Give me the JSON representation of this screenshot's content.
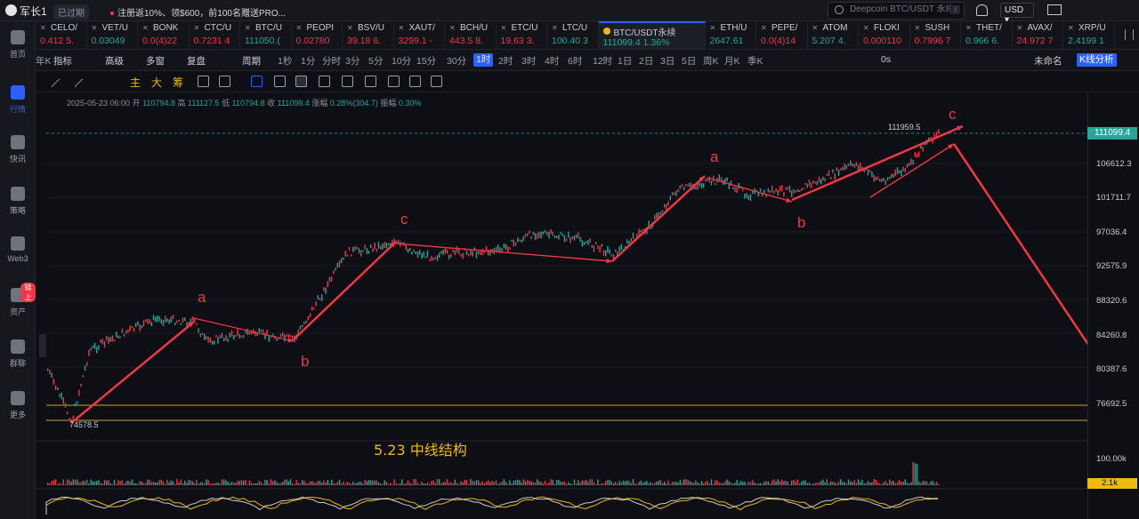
{
  "topbar": {
    "user": "军长1",
    "status": "已过期",
    "promo": "注册返10%、领$600，前100名赠送PRO...",
    "search_placeholder": "Deepcoin BTC/USDT 永续",
    "search_shortcut": "/",
    "currency": "USD ▾"
  },
  "sidebar": [
    {
      "label": "首页",
      "icon": "home-icon"
    },
    {
      "label": "行情",
      "icon": "chart-bars-icon",
      "active": true
    },
    {
      "label": "快讯",
      "icon": "news-icon"
    },
    {
      "label": "策略",
      "icon": "robot-icon"
    },
    {
      "label": "Web3",
      "icon": "web3-icon"
    },
    {
      "label": "资产",
      "icon": "wallet-icon",
      "badge": "链上"
    },
    {
      "label": "群聊",
      "icon": "chat-icon"
    },
    {
      "label": "更多",
      "icon": "grid-icon"
    }
  ],
  "tickers": [
    {
      "name": "CELO/",
      "price": "0.412 5.",
      "dir": "dn"
    },
    {
      "name": "VET/U",
      "price": "0.03049",
      "dir": "up"
    },
    {
      "name": "BONK",
      "price": "0.0(4)22",
      "dir": "dn"
    },
    {
      "name": "CTC/U",
      "price": "0.7231 4",
      "dir": "dn"
    },
    {
      "name": "BTC/U",
      "price": "111050.(",
      "dir": "up"
    },
    {
      "name": "PEOPI",
      "price": "0.02780",
      "dir": "dn"
    },
    {
      "name": "BSV/U",
      "price": "39.18 6.",
      "dir": "dn"
    },
    {
      "name": "XAUT/",
      "price": "3299.1 -",
      "dir": "dn"
    },
    {
      "name": "BCH/U",
      "price": "443.5 8.",
      "dir": "dn"
    },
    {
      "name": "ETC/U",
      "price": "19.63 3.",
      "dir": "dn"
    },
    {
      "name": "LTC/U",
      "price": "100.40 3",
      "dir": "up"
    },
    {
      "name": "BTC/USDT永续",
      "price": "111099.4  1.36%",
      "dir": "up",
      "active": true
    },
    {
      "name": "ETH/U",
      "price": "2647.61",
      "dir": "up"
    },
    {
      "name": "PEPE/",
      "price": "0.0(4)14",
      "dir": "dn"
    },
    {
      "name": "ATOM",
      "price": "5.207 4.",
      "dir": "up"
    },
    {
      "name": "FLOKI",
      "price": "0.000110",
      "dir": "dn"
    },
    {
      "name": "SUSH",
      "price": "0.7996 7",
      "dir": "dn"
    },
    {
      "name": "THET/",
      "price": "0.966 6.",
      "dir": "up"
    },
    {
      "name": "AVAX/",
      "price": "24.972 7",
      "dir": "dn"
    },
    {
      "name": "XRP/U",
      "price": "2.4199 1",
      "dir": "up"
    }
  ],
  "toolbar": {
    "indicators": "指标",
    "advanced": "高级",
    "multi": "多窗",
    "replay": "复盘",
    "period": "周期",
    "intervals": [
      "1秒",
      "1分",
      "分时",
      "3分",
      "5分",
      "10分",
      "15分",
      "30分",
      "1时",
      "2时",
      "3时",
      "4时",
      "6时",
      "12时",
      "1日",
      "2日",
      "3日",
      "5日",
      "周K",
      "月K",
      "季K",
      "年K"
    ],
    "selected_interval": "1时",
    "countdown": "0s",
    "layout_name": "未命名",
    "kline_analysis": "K线分析"
  },
  "drawbar": {
    "main": "主",
    "big": "大",
    "chip": "筹"
  },
  "ohlc": {
    "date": "2025-05-23 06:00",
    "open_label": "开",
    "open": "110794.8",
    "high_label": "高",
    "high": "111127.5",
    "low_label": "低",
    "low": "110794.8",
    "close_label": "收",
    "close": "111099.4",
    "change_label": "涨幅",
    "change": "0.28%(304.7)",
    "amp_label": "振幅",
    "amp": "0.30%"
  },
  "yaxis": [
    "106612.3",
    "101711.7",
    "97036.4",
    "92575.9",
    "88320.6",
    "84260.8",
    "80387.6",
    "76692.5"
  ],
  "current_price": "111099.4",
  "low_marker": "74578.5",
  "high_marker": "111959.5",
  "volume_axis": "100.00k",
  "volume_current": "2.1k",
  "annotation": "5.23  中线结构",
  "wave_labels": [
    "a",
    "b",
    "c",
    "a",
    "b",
    "c"
  ],
  "colors": {
    "up": "#26a69a",
    "down": "#f23645",
    "accent": "#2962ff",
    "arrow": "#f23645",
    "label": "#f23645",
    "annotation": "#f0b90b"
  }
}
